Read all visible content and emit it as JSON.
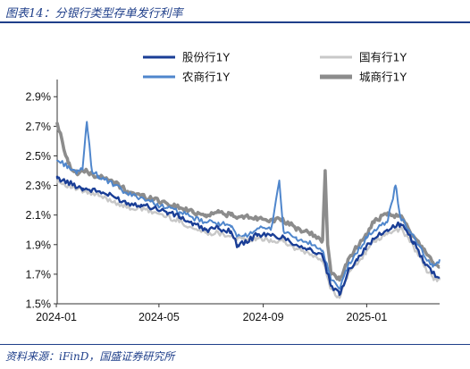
{
  "caption": "图表14：分银行类型存单发行利率",
  "source": "资料来源：iFinD，国盛证券研究所",
  "chart_data": {
    "type": "line",
    "title": "",
    "xlabel": "",
    "ylabel": "",
    "x_tick_labels": [
      "2024-01",
      "2024-05",
      "2024-09",
      "2025-01"
    ],
    "x_range": [
      "2024-01-02",
      "2025-03-28"
    ],
    "y_tick_labels": [
      "1.5%",
      "1.7%",
      "1.9%",
      "2.1%",
      "2.3%",
      "2.5%",
      "2.7%",
      "2.9%"
    ],
    "ylim": [
      1.5,
      2.98
    ],
    "unit": "%",
    "grid": false,
    "legend_position": "top-right",
    "series": [
      {
        "name": "股份行1Y",
        "color": "#1a3e96",
        "x": [
          "2024-01-02",
          "2024-01-15",
          "2024-02-01",
          "2024-02-20",
          "2024-03-10",
          "2024-03-25",
          "2024-04-10",
          "2024-04-25",
          "2024-05-10",
          "2024-05-25",
          "2024-06-10",
          "2024-06-25",
          "2024-07-10",
          "2024-07-25",
          "2024-08-01",
          "2024-08-10",
          "2024-08-25",
          "2024-09-10",
          "2024-09-25",
          "2024-10-10",
          "2024-10-25",
          "2024-11-10",
          "2024-11-20",
          "2024-11-30",
          "2024-12-10",
          "2024-12-20",
          "2024-12-31",
          "2025-01-10",
          "2025-01-25",
          "2025-02-10",
          "2025-02-25",
          "2025-03-10",
          "2025-03-20",
          "2025-03-28"
        ],
        "values": [
          2.35,
          2.32,
          2.28,
          2.26,
          2.22,
          2.18,
          2.17,
          2.15,
          2.12,
          2.09,
          2.04,
          2.0,
          2.01,
          1.99,
          1.9,
          1.91,
          1.97,
          1.96,
          1.95,
          1.9,
          1.87,
          1.82,
          1.62,
          1.56,
          1.72,
          1.8,
          1.88,
          1.94,
          2.0,
          2.04,
          1.92,
          1.78,
          1.71,
          1.68
        ]
      },
      {
        "name": "国有行1Y",
        "color": "#c8c8c8",
        "x": [
          "2024-01-02",
          "2024-01-15",
          "2024-02-01",
          "2024-02-20",
          "2024-03-10",
          "2024-03-25",
          "2024-04-10",
          "2024-04-25",
          "2024-05-10",
          "2024-05-25",
          "2024-06-10",
          "2024-06-25",
          "2024-07-10",
          "2024-07-25",
          "2024-08-01",
          "2024-08-10",
          "2024-08-25",
          "2024-09-10",
          "2024-09-25",
          "2024-10-10",
          "2024-10-25",
          "2024-11-10",
          "2024-11-20",
          "2024-11-30",
          "2024-12-10",
          "2024-12-20",
          "2024-12-31",
          "2025-01-10",
          "2025-01-25",
          "2025-02-10",
          "2025-02-25",
          "2025-03-10",
          "2025-03-20",
          "2025-03-28"
        ],
        "values": [
          2.33,
          2.3,
          2.26,
          2.23,
          2.19,
          2.15,
          2.14,
          2.12,
          2.09,
          2.06,
          2.01,
          1.98,
          1.98,
          1.96,
          1.94,
          1.93,
          1.94,
          1.93,
          1.92,
          1.87,
          1.84,
          1.79,
          1.6,
          1.54,
          1.7,
          1.77,
          1.85,
          1.92,
          1.97,
          2.01,
          1.89,
          1.75,
          1.68,
          1.66
        ]
      },
      {
        "name": "农商行1Y",
        "color": "#4f86cc",
        "x": [
          "2024-01-02",
          "2024-01-15",
          "2024-01-25",
          "2024-02-01",
          "2024-02-06",
          "2024-02-12",
          "2024-02-20",
          "2024-03-10",
          "2024-03-25",
          "2024-04-10",
          "2024-04-25",
          "2024-05-10",
          "2024-05-25",
          "2024-06-10",
          "2024-06-25",
          "2024-07-10",
          "2024-07-25",
          "2024-08-01",
          "2024-08-10",
          "2024-08-25",
          "2024-09-10",
          "2024-09-20",
          "2024-09-25",
          "2024-10-10",
          "2024-10-25",
          "2024-11-10",
          "2024-11-20",
          "2024-11-30",
          "2024-12-10",
          "2024-12-20",
          "2024-12-31",
          "2025-01-10",
          "2025-01-25",
          "2025-02-04",
          "2025-02-10",
          "2025-02-25",
          "2025-03-10",
          "2025-03-20",
          "2025-03-28"
        ],
        "values": [
          2.47,
          2.43,
          2.38,
          2.42,
          2.73,
          2.4,
          2.36,
          2.3,
          2.24,
          2.22,
          2.18,
          2.15,
          2.12,
          2.08,
          2.05,
          2.05,
          2.02,
          1.95,
          1.96,
          2.01,
          2.0,
          2.33,
          1.99,
          1.94,
          1.91,
          1.86,
          1.66,
          1.6,
          1.76,
          1.84,
          1.94,
          2.0,
          2.05,
          2.3,
          2.08,
          1.96,
          1.82,
          1.75,
          1.8
        ]
      },
      {
        "name": "城商行1Y",
        "color": "#8c8c8c",
        "x": [
          "2024-01-02",
          "2024-01-15",
          "2024-01-25",
          "2024-02-01",
          "2024-02-20",
          "2024-03-10",
          "2024-03-25",
          "2024-04-10",
          "2024-04-25",
          "2024-05-10",
          "2024-05-25",
          "2024-06-10",
          "2024-06-25",
          "2024-07-10",
          "2024-07-25",
          "2024-08-01",
          "2024-08-10",
          "2024-08-25",
          "2024-09-10",
          "2024-09-25",
          "2024-10-10",
          "2024-10-25",
          "2024-11-10",
          "2024-11-13",
          "2024-11-16",
          "2024-11-20",
          "2024-11-30",
          "2024-12-10",
          "2024-12-20",
          "2024-12-31",
          "2025-01-10",
          "2025-01-25",
          "2025-02-10",
          "2025-02-25",
          "2025-03-10",
          "2025-03-20",
          "2025-03-28"
        ],
        "values": [
          2.72,
          2.45,
          2.38,
          2.4,
          2.36,
          2.32,
          2.26,
          2.23,
          2.21,
          2.18,
          2.15,
          2.12,
          2.1,
          2.12,
          2.1,
          2.08,
          2.09,
          2.08,
          2.07,
          2.06,
          2.01,
          1.98,
          1.93,
          2.4,
          1.9,
          1.7,
          1.66,
          1.8,
          1.88,
          1.96,
          2.06,
          2.1,
          2.09,
          1.96,
          1.87,
          1.78,
          1.75
        ]
      }
    ]
  }
}
